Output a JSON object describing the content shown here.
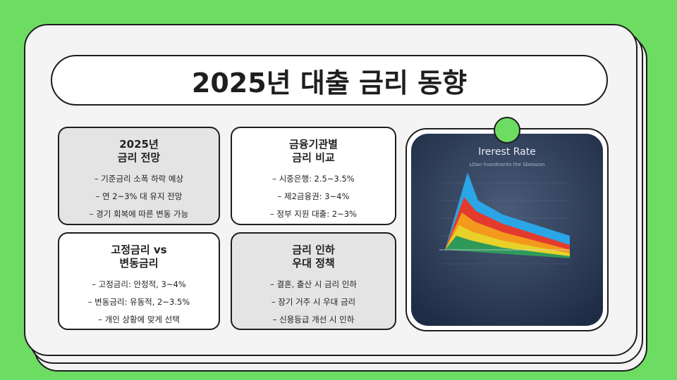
{
  "title": "2025년 대출 금리 동향",
  "cards": [
    {
      "title_lines": [
        "2025년",
        "금리 전망"
      ],
      "items": [
        "– 기준금리 소폭 하락 예상",
        "– 연 2~3% 대 유지 전망",
        "– 경기 회복에 따른 변동 가능"
      ]
    },
    {
      "title_lines": [
        "금융기관별",
        "금리 비교"
      ],
      "items": [
        "– 시중은행: 2.5~3.5%",
        "– 제2금융권: 3~4%",
        "– 정부 지원 대출: 2~3%"
      ]
    },
    {
      "title_lines": [
        "고정금리 vs",
        "변동금리"
      ],
      "items": [
        "– 고정금리: 안정적, 3~4%",
        "– 변동금리: 유동적, 2~3.5%",
        "– 개인 상황에 맞게 선택"
      ]
    },
    {
      "title_lines": [
        "금리 인하",
        "우대 정책"
      ],
      "items": [
        "– 결혼, 출산 시 금리 인하",
        "– 장기 거주 시 우대 금리",
        "– 신용등급 개선 시 인하"
      ]
    }
  ],
  "image": {
    "title": "Irerest Rate",
    "subtitle": "LOan lnandnento the Sbession"
  }
}
